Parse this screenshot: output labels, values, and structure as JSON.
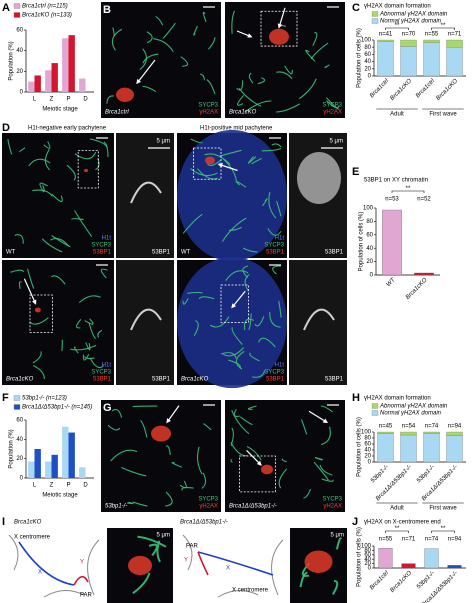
{
  "panel_labels": [
    "A",
    "B",
    "C",
    "D",
    "E",
    "F",
    "G",
    "H",
    "I",
    "J"
  ],
  "B": {
    "left": {
      "genotype": "Brca1ctrl",
      "stains": [
        "SYCP3",
        "γH2AX"
      ]
    },
    "right": {
      "genotype": "Brca1cKO",
      "stains": [
        "SYCP3",
        "γH2AX"
      ]
    }
  },
  "D": {
    "titles": [
      "H1t-negative early pachytene",
      "H1t-positive mid pachytene"
    ],
    "cells": [
      {
        "stains": [
          "H1t",
          "SYCP3",
          "53BP1"
        ],
        "genotype": "WT",
        "inset": {
          "scale": "5 μm",
          "label": "53BP1"
        }
      },
      {
        "stains": [
          "H1t",
          "SYCP3",
          "53BP1"
        ],
        "genotype": "WT",
        "inset": {
          "scale": "5 μm",
          "label": "53BP1"
        }
      },
      {
        "stains": [
          "H1t",
          "SYCP3",
          "53BP1"
        ],
        "genotype": "Brca1cKO",
        "inset": {
          "label": "53BP1"
        }
      },
      {
        "stains": [
          "H1t",
          "SYCP3",
          "53BP1"
        ],
        "genotype": "Brca1cKO",
        "inset": {
          "label": "53BP1"
        }
      }
    ]
  },
  "G": {
    "left": {
      "genotype": "53bp1-/-",
      "stains": [
        "SYCP3",
        "γH2AX"
      ]
    },
    "right": {
      "genotype": "Brca1Δ/Δ53bp1-/-",
      "stains": [
        "SYCP3",
        "γH2AX"
      ]
    }
  },
  "I": {
    "left": {
      "genotype": "Brca1cKO",
      "labels": [
        "X centromere",
        "X",
        "Y",
        "PAR"
      ],
      "scale": "5 μm"
    },
    "right": {
      "genotype": "Brca1Δ/Δ53bp1-/-",
      "labels": [
        "PAR",
        "Y",
        "X",
        "X centromere"
      ],
      "scale": "5 μm"
    }
  },
  "chart_data": [
    {
      "type": "bar",
      "categories": [
        "L",
        "Z",
        "P",
        "D"
      ],
      "xlabel": "Meiotic stage",
      "ylabel": "Population (%)",
      "series": [
        {
          "name": "Brca1ctrl (n=115)",
          "color": "#e2a6d2",
          "values": [
            10,
            21,
            52,
            13
          ]
        },
        {
          "name": "Brca1cKO (n=133)",
          "color": "#d3162e",
          "values": [
            16,
            28,
            55,
            0
          ]
        }
      ],
      "ylim": [
        0,
        60
      ],
      "yticks": [
        0,
        20,
        40,
        60
      ]
    },
    {
      "type": "bar",
      "stacked": true,
      "title": "γH2AX domain formation",
      "ylabel": "Population of cells (%)",
      "categories": [
        "Brca1ctrl",
        "Brca1cKO",
        "Brca1ctrl",
        "Brca1cKO"
      ],
      "group_labels": [
        "Adult",
        "First wave"
      ],
      "annotations": [
        "n=41",
        "n=70",
        "n=55",
        "n=71"
      ],
      "significance": [
        "**",
        "**"
      ],
      "series": [
        {
          "name": "Abnormal γH2AX domain",
          "color": "#a9d86a",
          "values": [
            5,
            18,
            7,
            20
          ]
        },
        {
          "name": "Normal γH2AX domain",
          "color": "#a8d8f2",
          "values": [
            95,
            82,
            93,
            80
          ]
        }
      ],
      "ylim": [
        0,
        100
      ],
      "yticks": [
        0,
        20,
        40,
        60,
        80,
        100
      ]
    },
    {
      "type": "bar",
      "title": "53BP1 on XY chromatin",
      "ylabel": "Population of cells (%)",
      "categories": [
        "WT",
        "Brca1cKO"
      ],
      "annotations": [
        "n=53",
        "n=52"
      ],
      "significance": [
        "**"
      ],
      "values": [
        97,
        3
      ],
      "colors": [
        "#e2a6d2",
        "#d3162e"
      ],
      "ylim": [
        0,
        100
      ],
      "yticks": [
        0,
        20,
        40,
        60,
        80,
        100
      ]
    },
    {
      "type": "bar",
      "categories": [
        "L",
        "Z",
        "P",
        "D"
      ],
      "xlabel": "Meiotic stage",
      "ylabel": "Population (%)",
      "series": [
        {
          "name": "53bp1-/- (n=123)",
          "color": "#a8d8f2",
          "values": [
            17,
            17,
            53,
            11
          ]
        },
        {
          "name": "Brca1Δ/Δ53bp1-/- (n=145)",
          "color": "#1f4fc4",
          "values": [
            30,
            24,
            47,
            0
          ]
        }
      ],
      "ylim": [
        0,
        60
      ],
      "yticks": [
        0,
        20,
        40,
        60
      ]
    },
    {
      "type": "bar",
      "stacked": true,
      "title": "γH2AX domain formation",
      "ylabel": "Population of cells (%)",
      "categories": [
        "53bp1-/-",
        "Brca1Δ/Δ53bp1-/-",
        "53bp1-/-",
        "Brca1Δ/Δ53bp1-/-"
      ],
      "group_labels": [
        "Adult",
        "First wave"
      ],
      "annotations": [
        "n=45",
        "n=54",
        "n=74",
        "n=94"
      ],
      "series": [
        {
          "name": "Abnormal γH2AX domain",
          "color": "#a9d86a",
          "values": [
            5,
            10,
            6,
            12
          ]
        },
        {
          "name": "Normal γH2AX domain",
          "color": "#a8d8f2",
          "values": [
            95,
            90,
            94,
            88
          ]
        }
      ],
      "ylim": [
        0,
        100
      ],
      "yticks": [
        0,
        20,
        40,
        60,
        80,
        100
      ]
    },
    {
      "type": "bar",
      "title": "γH2AX on X-centromere end",
      "ylabel": "Population of cells (%)",
      "categories": [
        "Brca1ctrl",
        "Brca1cKO",
        "53bp1-/-",
        "Brca1Δ/Δ53bp1-/-"
      ],
      "annotations": [
        "n=55",
        "n=71",
        "n=74",
        "n=94"
      ],
      "significance": [
        "**",
        "**"
      ],
      "values": [
        90,
        20,
        88,
        12
      ],
      "colors": [
        "#e2a6d2",
        "#d3162e",
        "#a8d8f2",
        "#1f4fc4"
      ],
      "ylim": [
        0,
        100
      ],
      "yticks": [
        0,
        20,
        40,
        60,
        80,
        100
      ]
    }
  ]
}
